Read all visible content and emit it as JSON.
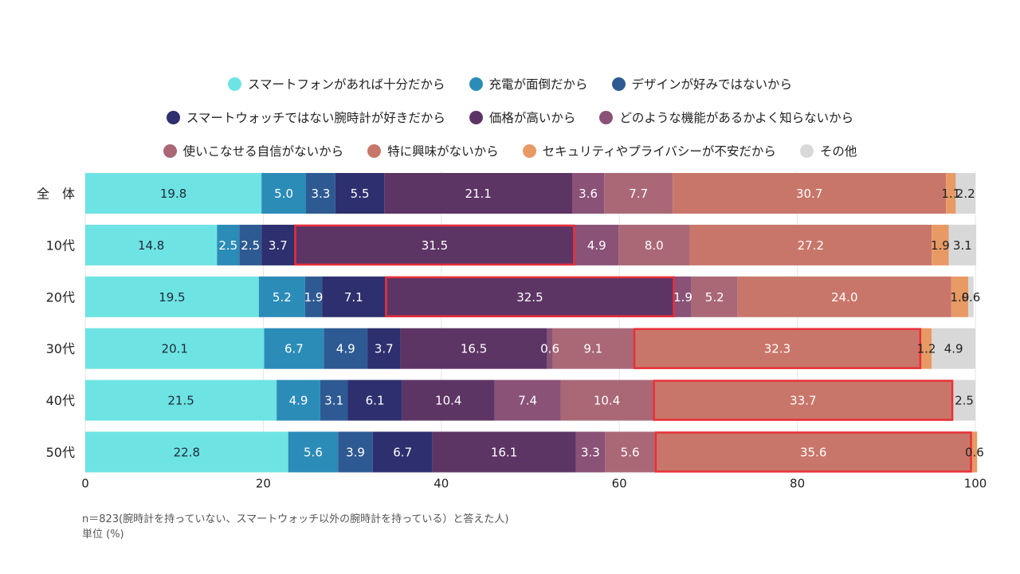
{
  "chart_data": {
    "type": "bar",
    "orientation": "horizontal",
    "stacked": true,
    "title": "",
    "xlabel": "",
    "ylabel": "",
    "xlim": [
      0,
      100
    ],
    "xticks": [
      0,
      20,
      40,
      60,
      80,
      100
    ],
    "grid": true,
    "legend_position": "top-center",
    "categories": [
      "全　体",
      "10代",
      "20代",
      "30代",
      "40代",
      "50代"
    ],
    "series": [
      {
        "name": "スマートフォンがあれば十分だから",
        "color": "#6ee3e3",
        "label_color": "#1e2a3a",
        "values": [
          19.8,
          14.8,
          19.5,
          20.1,
          21.5,
          22.8
        ]
      },
      {
        "name": "充電が面倒だから",
        "color": "#2b8cb8",
        "label_color": "#ffffff",
        "values": [
          5.0,
          2.5,
          5.2,
          6.7,
          4.9,
          5.6
        ]
      },
      {
        "name": "デザインが好みではないから",
        "color": "#2e5a93",
        "label_color": "#ffffff",
        "values": [
          3.3,
          2.5,
          1.9,
          4.9,
          3.1,
          3.9
        ]
      },
      {
        "name": "スマートウォッチではない腕時計が好きだから",
        "color": "#2e2f6e",
        "label_color": "#ffffff",
        "values": [
          5.5,
          3.7,
          7.1,
          3.7,
          6.1,
          6.7
        ]
      },
      {
        "name": "価格が高いから",
        "color": "#5d3565",
        "label_color": "#ffffff",
        "values": [
          21.1,
          31.5,
          32.5,
          16.5,
          10.4,
          16.1
        ]
      },
      {
        "name": "どのような機能があるかよく知らないから",
        "color": "#8a5277",
        "label_color": "#ffffff",
        "values": [
          3.6,
          4.9,
          1.9,
          0.6,
          7.4,
          3.3
        ]
      },
      {
        "name": "使いこなせる自信がないから",
        "color": "#aa6876",
        "label_color": "#ffffff",
        "values": [
          7.7,
          8.0,
          5.2,
          9.1,
          10.4,
          5.6
        ]
      },
      {
        "name": "特に興味がないから",
        "color": "#c9766a",
        "label_color": "#ffffff",
        "values": [
          30.7,
          27.2,
          24.0,
          32.3,
          33.7,
          35.6
        ]
      },
      {
        "name": "セキュリティやプライバシーが不安だから",
        "color": "#e89a65",
        "label_color": "#222222",
        "values": [
          1.1,
          1.9,
          1.9,
          1.2,
          0,
          0.6
        ]
      },
      {
        "name": "その他",
        "color": "#d8d8d8",
        "label_color": "#222222",
        "values": [
          2.2,
          3.1,
          0.6,
          4.9,
          2.5,
          0
        ]
      }
    ],
    "highlights": [
      {
        "category": "10代",
        "series": "価格が高いから"
      },
      {
        "category": "20代",
        "series": "価格が高いから"
      },
      {
        "category": "30代",
        "series": "特に興味がないから"
      },
      {
        "category": "40代",
        "series": "特に興味がないから"
      },
      {
        "category": "50代",
        "series": "特に興味がないから"
      }
    ],
    "highlight_color": "#e8303a",
    "notes": [
      "n＝823(腕時計を持っていない、スマートウォッチ以外の腕時計を持っている）と答えた人)",
      "単位 (%)"
    ]
  },
  "legend": {
    "rows": [
      [
        0,
        1,
        2
      ],
      [
        3,
        4,
        5
      ],
      [
        6,
        7,
        8,
        9
      ]
    ]
  }
}
